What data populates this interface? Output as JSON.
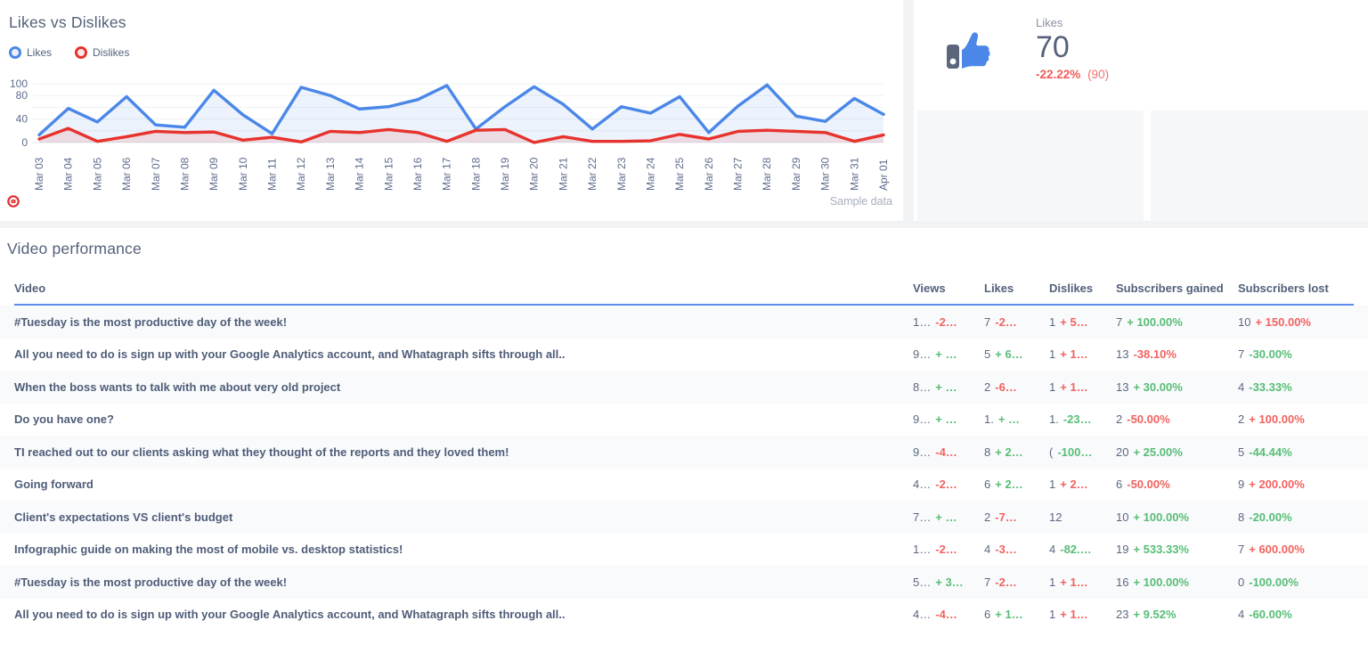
{
  "chart_card": {
    "title": "Likes vs Dislikes",
    "legend": [
      {
        "label": "Likes",
        "color": "#4a87e8"
      },
      {
        "label": "Dislikes",
        "color": "#e7332d"
      }
    ],
    "source_icon": "youtube-icon",
    "footnote": "Sample data"
  },
  "chart_data": {
    "type": "area",
    "title": "Likes vs Dislikes",
    "x": [
      "Mar 03",
      "Mar 04",
      "Mar 05",
      "Mar 06",
      "Mar 07",
      "Mar 08",
      "Mar 09",
      "Mar 10",
      "Mar 11",
      "Mar 12",
      "Mar 13",
      "Mar 14",
      "Mar 15",
      "Mar 16",
      "Mar 17",
      "Mar 18",
      "Mar 19",
      "Mar 20",
      "Mar 21",
      "Mar 22",
      "Mar 23",
      "Mar 24",
      "Mar 25",
      "Mar 26",
      "Mar 27",
      "Mar 28",
      "Mar 29",
      "Mar 30",
      "Mar 31",
      "Apr 01"
    ],
    "series": [
      {
        "name": "Likes",
        "color": "#4a87e8",
        "fill": "rgba(74,135,232,0.10)",
        "values": [
          13,
          58,
          35,
          78,
          30,
          26,
          89,
          47,
          15,
          94,
          80,
          57,
          61,
          73,
          97,
          23,
          61,
          95,
          65,
          23,
          61,
          50,
          78,
          17,
          62,
          98,
          45,
          36,
          75,
          48
        ]
      },
      {
        "name": "Dislikes",
        "color": "#e7332d",
        "fill": "rgba(231,60,55,0.13)",
        "values": [
          6,
          24,
          2,
          10,
          19,
          17,
          18,
          4,
          9,
          1,
          19,
          17,
          22,
          17,
          2,
          21,
          22,
          0,
          10,
          2,
          2,
          3,
          14,
          6,
          19,
          21,
          19,
          17,
          2,
          13
        ]
      }
    ],
    "ylim": [
      0,
      100
    ],
    "y_ticks": [
      0,
      40,
      80,
      100
    ],
    "grid": true,
    "legend_position": "top-left"
  },
  "likes_widget": {
    "label": "Likes",
    "value": "70",
    "change": "-22.22%",
    "previous": "(90)",
    "icon": "thumbs-up-icon",
    "accent_color": "#4a87e8",
    "change_color": "#f25b58"
  },
  "video_section": {
    "title": "Video performance",
    "columns": [
      "Video",
      "Views",
      "Likes",
      "Dislikes",
      "Subscribers gained",
      "Subscribers lost"
    ],
    "rows": [
      {
        "title": "#Tuesday is the most productive day of the week!",
        "views": {
          "v": "1…",
          "c": "-2…",
          "cc": "r"
        },
        "likes": {
          "v": "7",
          "c": "-2…",
          "cc": "r"
        },
        "dislikes": {
          "v": "1",
          "c": "+ 5…",
          "cc": "r"
        },
        "gained": {
          "v": "7",
          "c": "+ 100.00%",
          "cc": "g"
        },
        "lost": {
          "v": "10",
          "c": "+ 150.00%",
          "cc": "r"
        }
      },
      {
        "title": "All you need to do is sign up with your Google Analytics account, and Whatagraph sifts through all..",
        "views": {
          "v": "9…",
          "c": "+ …",
          "cc": "g"
        },
        "likes": {
          "v": "5",
          "c": "+ 6…",
          "cc": "g"
        },
        "dislikes": {
          "v": "1",
          "c": "+ 1…",
          "cc": "r"
        },
        "gained": {
          "v": "13",
          "c": "-38.10%",
          "cc": "r"
        },
        "lost": {
          "v": "7",
          "c": "-30.00%",
          "cc": "g"
        }
      },
      {
        "title": "When the boss wants to talk with me about very old project",
        "views": {
          "v": "8…",
          "c": "+ …",
          "cc": "g"
        },
        "likes": {
          "v": "2",
          "c": "-6…",
          "cc": "r"
        },
        "dislikes": {
          "v": "1",
          "c": "+ 1…",
          "cc": "r"
        },
        "gained": {
          "v": "13",
          "c": "+ 30.00%",
          "cc": "g"
        },
        "lost": {
          "v": "4",
          "c": "-33.33%",
          "cc": "g"
        }
      },
      {
        "title": "Do you have one?",
        "views": {
          "v": "9…",
          "c": "+ …",
          "cc": "g"
        },
        "likes": {
          "v": "1.",
          "c": "+ …",
          "cc": "g"
        },
        "dislikes": {
          "v": "1.",
          "c": "-23…",
          "cc": "g"
        },
        "gained": {
          "v": "2",
          "c": "-50.00%",
          "cc": "r"
        },
        "lost": {
          "v": "2",
          "c": "+ 100.00%",
          "cc": "r"
        }
      },
      {
        "title": "TI reached out to our clients asking what they thought of the reports and they loved them!",
        "views": {
          "v": "9…",
          "c": "-4…",
          "cc": "r"
        },
        "likes": {
          "v": "8",
          "c": "+ 2…",
          "cc": "g"
        },
        "dislikes": {
          "v": "(",
          "c": "-100…",
          "cc": "g"
        },
        "gained": {
          "v": "20",
          "c": "+ 25.00%",
          "cc": "g"
        },
        "lost": {
          "v": "5",
          "c": "-44.44%",
          "cc": "g"
        }
      },
      {
        "title": "Going forward",
        "views": {
          "v": "4…",
          "c": "-2…",
          "cc": "r"
        },
        "likes": {
          "v": "6",
          "c": "+ 2…",
          "cc": "g"
        },
        "dislikes": {
          "v": "1",
          "c": "+ 2…",
          "cc": "r"
        },
        "gained": {
          "v": "6",
          "c": "-50.00%",
          "cc": "r"
        },
        "lost": {
          "v": "9",
          "c": "+ 200.00%",
          "cc": "r"
        }
      },
      {
        "title": "Client's expectations VS client's budget",
        "views": {
          "v": "7…",
          "c": "+ …",
          "cc": "g"
        },
        "likes": {
          "v": "2",
          "c": "-7…",
          "cc": "r"
        },
        "dislikes": {
          "v": "12",
          "c": "",
          "cc": null
        },
        "gained": {
          "v": "10",
          "c": "+ 100.00%",
          "cc": "g"
        },
        "lost": {
          "v": "8",
          "c": "-20.00%",
          "cc": "g"
        }
      },
      {
        "title": "Infographic guide on making the most of mobile vs. desktop statistics!",
        "views": {
          "v": "1…",
          "c": "-2…",
          "cc": "r"
        },
        "likes": {
          "v": "4",
          "c": "-3…",
          "cc": "r"
        },
        "dislikes": {
          "v": "4",
          "c": "-82.…",
          "cc": "g"
        },
        "gained": {
          "v": "19",
          "c": "+ 533.33%",
          "cc": "g"
        },
        "lost": {
          "v": "7",
          "c": "+ 600.00%",
          "cc": "r"
        }
      },
      {
        "title": "#Tuesday is the most productive day of the week!",
        "views": {
          "v": "5…",
          "c": "+ 3…",
          "cc": "g"
        },
        "likes": {
          "v": "7",
          "c": "-2…",
          "cc": "r"
        },
        "dislikes": {
          "v": "1",
          "c": "+ 1…",
          "cc": "r"
        },
        "gained": {
          "v": "16",
          "c": "+ 100.00%",
          "cc": "g"
        },
        "lost": {
          "v": "0",
          "c": "-100.00%",
          "cc": "g"
        }
      },
      {
        "title": "All you need to do is sign up with your Google Analytics account, and Whatagraph sifts through all..",
        "views": {
          "v": "4…",
          "c": "-4…",
          "cc": "r"
        },
        "likes": {
          "v": "6",
          "c": "+ 1…",
          "cc": "g"
        },
        "dislikes": {
          "v": "1",
          "c": "+ 1…",
          "cc": "r"
        },
        "gained": {
          "v": "23",
          "c": "+ 9.52%",
          "cc": "g"
        },
        "lost": {
          "v": "4",
          "c": "-60.00%",
          "cc": "g"
        }
      }
    ]
  }
}
